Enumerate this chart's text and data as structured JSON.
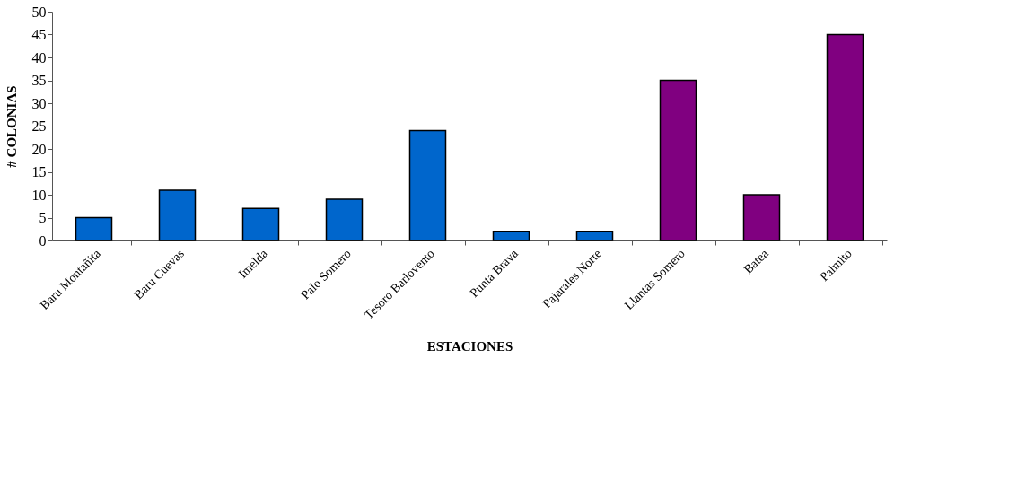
{
  "chart_data": {
    "type": "bar",
    "categories": [
      "Baru Montañita",
      "Baru Cuevas",
      "Imelda",
      "Palo Somero",
      "Tesoro Barlovento",
      "Punta Brava",
      "Pajarales Norte",
      "Llantas Somero",
      "Batea",
      "Palmito"
    ],
    "values": [
      5,
      11,
      7,
      9,
      24,
      2,
      2,
      35,
      10,
      45
    ],
    "colors": [
      "#0066cc",
      "#0066cc",
      "#0066cc",
      "#0066cc",
      "#0066cc",
      "#0066cc",
      "#0066cc",
      "#800080",
      "#800080",
      "#800080"
    ],
    "xlabel": "ESTACIONES",
    "ylabel": "# COLONIAS",
    "ylim": [
      0,
      50
    ],
    "yticks": [
      0,
      5,
      10,
      15,
      20,
      25,
      30,
      35,
      40,
      45,
      50
    ],
    "grid": false,
    "legend": false
  }
}
